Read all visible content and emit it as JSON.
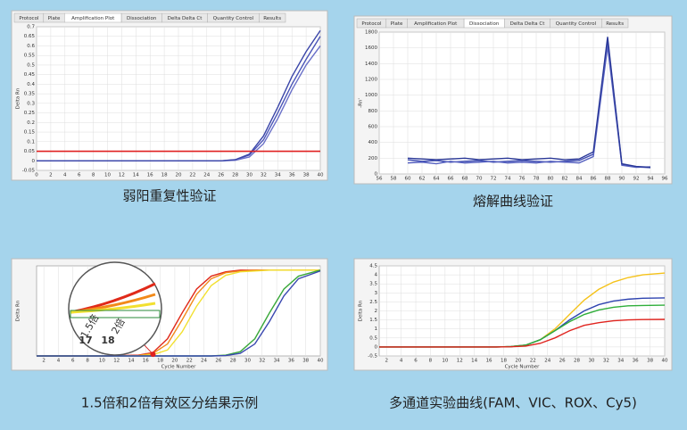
{
  "chart_data": [
    {
      "type": "line",
      "caption": "弱阳重复性验证",
      "tabs": [
        "Protocol",
        "Plate",
        "Amplification Plot",
        "Dissociation",
        "Delta Delta Ct",
        "Quantity Control",
        "Results"
      ],
      "active_tab": 2,
      "y_label": "Delta Rn",
      "grid": true,
      "x": [
        0,
        2,
        4,
        6,
        8,
        10,
        12,
        14,
        16,
        18,
        20,
        22,
        24,
        26,
        28,
        30,
        32,
        34,
        36,
        38,
        40
      ],
      "xlim": [
        0,
        40
      ],
      "xticks": [
        0,
        2,
        4,
        6,
        8,
        10,
        12,
        14,
        16,
        18,
        20,
        22,
        24,
        26,
        28,
        30,
        32,
        34,
        36,
        38,
        40
      ],
      "ylim": [
        -0.05,
        0.7
      ],
      "yticks": [
        -0.05,
        0,
        0.05,
        0.1,
        0.15,
        0.2,
        0.25,
        0.3,
        0.35,
        0.4,
        0.45,
        0.5,
        0.55,
        0.6,
        0.65,
        0.7
      ],
      "threshold": 0.05,
      "threshold_color": "#e02020",
      "series": [
        {
          "color": "#4a55b8",
          "values": [
            0,
            0,
            0,
            0,
            0,
            0,
            0,
            0,
            0,
            0,
            0,
            0,
            0,
            0,
            0.005,
            0.03,
            0.11,
            0.25,
            0.4,
            0.53,
            0.65
          ]
        },
        {
          "color": "#6a70c8",
          "values": [
            0,
            0,
            0,
            0,
            0,
            0,
            0,
            0,
            0,
            0,
            0,
            0,
            0,
            0,
            0.003,
            0.02,
            0.09,
            0.22,
            0.37,
            0.5,
            0.6
          ]
        },
        {
          "color": "#3a45a8",
          "values": [
            0,
            0,
            0,
            0,
            0,
            0,
            0,
            0,
            0,
            0,
            0,
            0,
            0,
            0,
            0.006,
            0.035,
            0.13,
            0.28,
            0.44,
            0.57,
            0.68
          ]
        }
      ]
    },
    {
      "type": "line",
      "caption": "熔解曲线验证",
      "tabs": [
        "Protocol",
        "Plate",
        "Amplification Plot",
        "Dissociation",
        "Delta Delta Ct",
        "Quantity Control",
        "Results"
      ],
      "active_tab": 3,
      "y_label": "-Rn'",
      "grid": true,
      "x": [
        60,
        62,
        64,
        66,
        68,
        70,
        72,
        74,
        76,
        78,
        80,
        82,
        84,
        86,
        88,
        90,
        92,
        94
      ],
      "xlim": [
        56,
        96
      ],
      "xticks": [
        56,
        58,
        60,
        62,
        64,
        66,
        68,
        70,
        72,
        74,
        76,
        78,
        80,
        82,
        84,
        86,
        88,
        90,
        92,
        94,
        96
      ],
      "ylim": [
        0,
        1800
      ],
      "yticks": [
        0,
        200,
        400,
        600,
        800,
        1000,
        1200,
        1400,
        1600,
        1800
      ],
      "series": [
        {
          "color": "#3a48b0",
          "values": [
            180,
            160,
            170,
            150,
            160,
            170,
            150,
            160,
            170,
            160,
            150,
            160,
            170,
            250,
            1700,
            120,
            90,
            80
          ]
        },
        {
          "color": "#5560c0",
          "values": [
            140,
            150,
            130,
            160,
            140,
            150,
            160,
            140,
            150,
            140,
            160,
            150,
            140,
            220,
            1620,
            110,
            85,
            90
          ]
        },
        {
          "color": "#2a3898",
          "values": [
            200,
            190,
            180,
            190,
            200,
            180,
            190,
            200,
            180,
            190,
            200,
            180,
            190,
            280,
            1740,
            130,
            95,
            85
          ]
        }
      ]
    },
    {
      "type": "line",
      "caption": "1.5倍和2倍有效区分结果示例",
      "y_label": "Delta Rn",
      "x_label": "Cycle Number",
      "grid": true,
      "x": [
        1,
        5,
        10,
        15,
        17,
        19,
        21,
        23,
        25,
        27,
        29,
        31,
        33,
        35,
        37,
        40
      ],
      "xlim": [
        1,
        40
      ],
      "xticks": [
        2,
        4,
        6,
        8,
        10,
        12,
        14,
        16,
        18,
        20,
        22,
        24,
        26,
        28,
        30,
        32,
        34,
        36,
        38,
        40
      ],
      "ylim": [
        0,
        1.05
      ],
      "annotations": [
        "1.5倍",
        "2倍",
        "17",
        "18"
      ],
      "series": [
        {
          "color": "#e02a1a",
          "values": [
            0,
            0,
            0,
            0.01,
            0.04,
            0.2,
            0.5,
            0.78,
            0.93,
            0.98,
            1,
            1,
            1,
            1,
            1,
            1
          ]
        },
        {
          "color": "#f28a1a",
          "values": [
            0,
            0,
            0,
            0.005,
            0.03,
            0.14,
            0.42,
            0.72,
            0.9,
            0.97,
            0.99,
            1,
            1,
            1,
            1,
            1
          ]
        },
        {
          "color": "#f2e030",
          "values": [
            0,
            0,
            0,
            0.003,
            0.015,
            0.07,
            0.28,
            0.58,
            0.82,
            0.94,
            0.98,
            0.99,
            1,
            1,
            1,
            1
          ]
        },
        {
          "color": "#3aa83a",
          "values": [
            0,
            0,
            0,
            0,
            0,
            0,
            0,
            0,
            0,
            0.01,
            0.05,
            0.2,
            0.5,
            0.78,
            0.93,
            1
          ]
        },
        {
          "color": "#3a48b0",
          "values": [
            0,
            0,
            0,
            0,
            0,
            0,
            0,
            0,
            0,
            0.005,
            0.03,
            0.14,
            0.4,
            0.7,
            0.9,
            0.99
          ]
        }
      ]
    },
    {
      "type": "line",
      "caption": "多通道实验曲线(FAM、VIC、ROX、Cy5)",
      "y_label": "Delta Rn",
      "x_label": "Cycle Number",
      "grid": true,
      "x": [
        1,
        5,
        10,
        15,
        17,
        19,
        21,
        23,
        25,
        27,
        29,
        31,
        33,
        35,
        37,
        40
      ],
      "xlim": [
        1,
        40
      ],
      "xticks": [
        2,
        4,
        6,
        8,
        10,
        12,
        14,
        16,
        18,
        20,
        22,
        24,
        26,
        28,
        30,
        32,
        34,
        36,
        38,
        40
      ],
      "ylim": [
        -0.5,
        4.5
      ],
      "yticks": [
        -0.5,
        0,
        0.5,
        1,
        1.5,
        2,
        2.5,
        3,
        3.5,
        4,
        4.5
      ],
      "series": [
        {
          "color": "#f5c21a",
          "values": [
            0,
            0,
            0,
            0,
            0,
            0.02,
            0.1,
            0.4,
            1.0,
            1.8,
            2.6,
            3.2,
            3.6,
            3.85,
            4.0,
            4.1
          ]
        },
        {
          "color": "#2f44b0",
          "values": [
            0,
            0,
            0,
            0,
            0,
            0.02,
            0.1,
            0.4,
            0.9,
            1.5,
            2.0,
            2.35,
            2.55,
            2.65,
            2.7,
            2.72
          ]
        },
        {
          "color": "#2fae3a",
          "values": [
            0,
            0,
            0,
            0,
            0,
            0.02,
            0.1,
            0.4,
            0.9,
            1.4,
            1.8,
            2.05,
            2.2,
            2.28,
            2.3,
            2.32
          ]
        },
        {
          "color": "#e0241e",
          "values": [
            0,
            0,
            0,
            0,
            0,
            0.01,
            0.05,
            0.2,
            0.5,
            0.9,
            1.2,
            1.35,
            1.45,
            1.5,
            1.52,
            1.53
          ]
        }
      ]
    }
  ]
}
